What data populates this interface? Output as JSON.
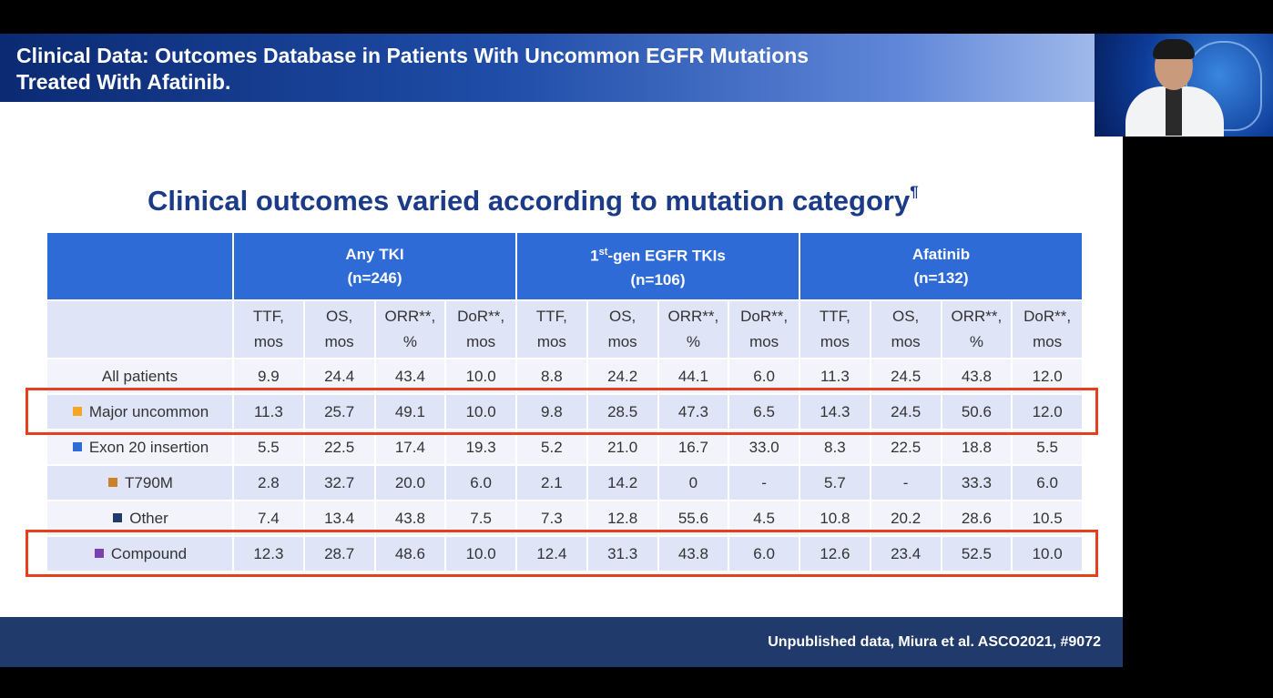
{
  "slide": {
    "title": "Clinical Data: Outcomes Database in Patients With Uncommon EGFR Mutations\nTreated With Afatinib.",
    "subtitle": "Clinical outcomes varied according to mutation category",
    "subtitle_mark": "¶",
    "footer": "Unpublished data, Miura et al. ASCO2021, #9072"
  },
  "table": {
    "groups": [
      {
        "label": "Any TKI",
        "n": "(n=246)"
      },
      {
        "label_pre": "1",
        "label_sup": "st",
        "label_post": "-gen EGFR TKIs",
        "n": "(n=106)"
      },
      {
        "label": "Afatinib",
        "n": "(n=132)"
      }
    ],
    "subheaders": [
      [
        "TTF,",
        "mos"
      ],
      [
        "OS,",
        "mos"
      ],
      [
        "ORR**,",
        "%"
      ],
      [
        "DoR**,",
        "mos"
      ],
      [
        "TTF,",
        "mos"
      ],
      [
        "OS,",
        "mos"
      ],
      [
        "ORR**,",
        "%"
      ],
      [
        "DoR**,",
        "mos"
      ],
      [
        "TTF,",
        "mos"
      ],
      [
        "OS,",
        "mos"
      ],
      [
        "ORR**,",
        "%"
      ],
      [
        "DoR**,",
        "mos"
      ]
    ],
    "rows": [
      {
        "label": "All patients",
        "color": "",
        "values": [
          "9.9",
          "24.4",
          "43.4",
          "10.0",
          "8.8",
          "24.2",
          "44.1",
          "6.0",
          "11.3",
          "24.5",
          "43.8",
          "12.0"
        ]
      },
      {
        "label": "Major uncommon",
        "color": "#f5a623",
        "values": [
          "11.3",
          "25.7",
          "49.1",
          "10.0",
          "9.8",
          "28.5",
          "47.3",
          "6.5",
          "14.3",
          "24.5",
          "50.6",
          "12.0"
        ]
      },
      {
        "label": "Exon 20 insertion",
        "color": "#2f6bd6",
        "values": [
          "5.5",
          "22.5",
          "17.4",
          "19.3",
          "5.2",
          "21.0",
          "16.7",
          "33.0",
          "8.3",
          "22.5",
          "18.8",
          "5.5"
        ]
      },
      {
        "label": "T790M",
        "color": "#c9822a",
        "values": [
          "2.8",
          "32.7",
          "20.0",
          "6.0",
          "2.1",
          "14.2",
          "0",
          "-",
          "5.7",
          "-",
          "33.3",
          "6.0"
        ]
      },
      {
        "label": "Other",
        "color": "#1f3a6b",
        "values": [
          "7.4",
          "13.4",
          "43.8",
          "7.5",
          "7.3",
          "12.8",
          "55.6",
          "4.5",
          "10.8",
          "20.2",
          "28.6",
          "10.5"
        ]
      },
      {
        "label": "Compound",
        "color": "#7a3fb0",
        "values": [
          "12.3",
          "28.7",
          "48.6",
          "10.0",
          "12.4",
          "31.3",
          "43.8",
          "6.0",
          "12.6",
          "23.4",
          "52.5",
          "10.0"
        ]
      }
    ]
  },
  "colors": {
    "header_blue": "#2f6bd6",
    "highlight_red": "#e5401e",
    "title_navy": "#1b3a87",
    "footer_bar": "#1f3a6b"
  },
  "video": {
    "icon": "presenter-video-feed"
  }
}
